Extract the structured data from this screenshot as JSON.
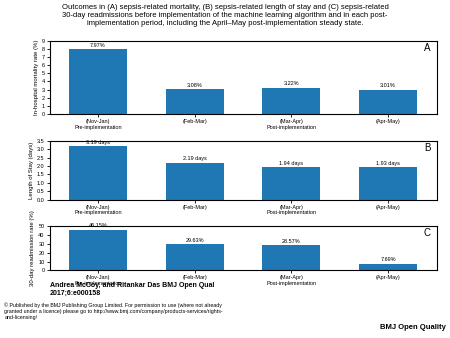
{
  "title": "Outcomes in (A) sepsis-related mortality, (B) sepsis-related length of stay and (C) sepsis-related\n30-day readmissions before implementation of the machine learning algorithm and in each post-\nimplementation period, including the April–May post-implementation steady state.",
  "annotations": [
    "Andrea McCoy, and Ritankar Das BMJ Open Qual\n2017;6:e000158",
    "© Published by the BMJ Publishing Group Limited. For permission to use (where not already\ngranted under a licence) please go to http://www.bmj.com/company/products-services/rights-\nand-licensing/",
    "BMJ Open Quality"
  ],
  "chart_data": [
    {
      "type": "bar",
      "annotations": [
        "A"
      ],
      "categories": [
        "(Nov-Jan)\nPre-implementation",
        "(Feb-Mar)",
        "(Mar-Apr)\nPost-implementation",
        "(Apr-May)"
      ],
      "values": [
        7.97,
        3.08,
        3.22,
        3.01
      ],
      "value_labels": [
        "7.97%",
        "3.08%",
        "3.22%",
        "3.01%"
      ],
      "data_labels": true,
      "ylabel": "In-hospital mortality rate (%)",
      "ylim": [
        0,
        9
      ],
      "yticks": [
        0,
        1,
        2,
        3,
        4,
        5,
        6,
        7,
        8,
        9
      ]
    },
    {
      "type": "bar",
      "annotations": [
        "B"
      ],
      "categories": [
        "(Nov-Jan)\nPre-implementation",
        "(Feb-Mar)",
        "(Mar-Apr)\nPost-implementation",
        "(Apr-May)"
      ],
      "values": [
        3.19,
        2.19,
        1.94,
        1.93
      ],
      "value_labels": [
        "3.19 days",
        "2.19 days",
        "1.94 days",
        "1.93 days"
      ],
      "data_labels": true,
      "ylabel": "Length of Stay (days)",
      "ylim": [
        0,
        3.5
      ],
      "yticks": [
        {
          "value": 0,
          "label": "0.0"
        },
        0.5,
        {
          "value": 1,
          "label": "1.0"
        },
        1.5,
        {
          "value": 2,
          "label": "2.0"
        },
        2.5,
        {
          "value": 3,
          "label": "3.0"
        },
        3.5
      ]
    },
    {
      "type": "bar",
      "annotations": [
        "C"
      ],
      "categories": [
        "(Nov-Jan)\nPre-implementation",
        "(Feb-Mar)",
        "(Mar-Apr)\nPost-implementation",
        "(Apr-May)"
      ],
      "values": [
        46.15,
        29.63,
        28.57,
        7.69
      ],
      "value_labels": [
        "46.15%",
        "29.63%",
        "28.57%",
        "7.69%"
      ],
      "data_labels": true,
      "ylabel": "30-day readmission rate (%)",
      "ylim": [
        0,
        50
      ],
      "yticks": [
        0,
        10,
        20,
        30,
        40,
        50
      ]
    }
  ]
}
